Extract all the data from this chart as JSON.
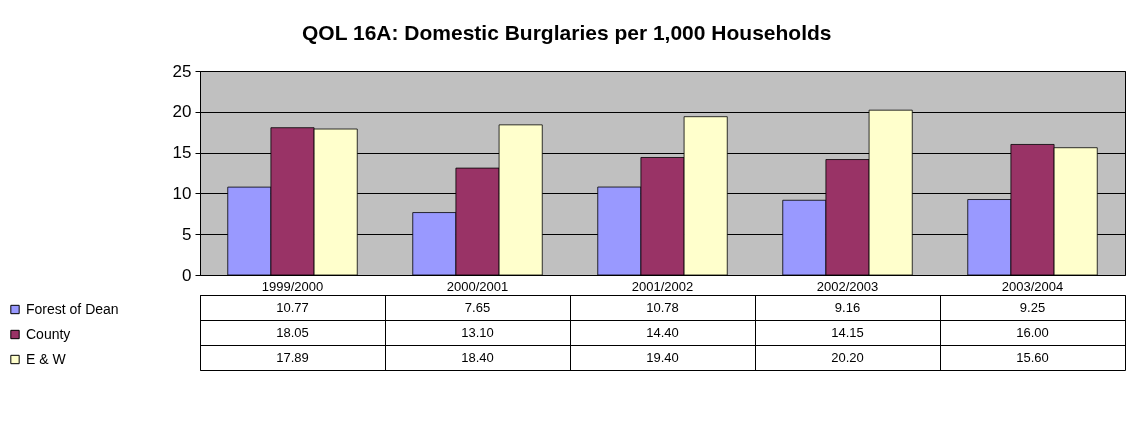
{
  "chart_data": {
    "type": "bar",
    "title": "QOL 16A: Domestic Burglaries per 1,000 Households",
    "categories": [
      "1999/2000",
      "2000/2001",
      "2001/2002",
      "2002/2003",
      "2003/2004"
    ],
    "series": [
      {
        "name": "Forest of Dean",
        "color": "#9999ff",
        "values": [
          10.77,
          7.65,
          10.78,
          9.16,
          9.25
        ],
        "value_labels": [
          "10.77",
          "7.65",
          "10.78",
          "9.16",
          "9.25"
        ]
      },
      {
        "name": "County",
        "color": "#993366",
        "values": [
          18.05,
          13.1,
          14.4,
          14.15,
          16.0
        ],
        "value_labels": [
          "18.05",
          "13.10",
          "14.40",
          "14.15",
          "16.00"
        ]
      },
      {
        "name": "E & W",
        "color": "#ffffcc",
        "values": [
          17.89,
          18.4,
          19.4,
          20.2,
          15.6
        ],
        "value_labels": [
          "17.89",
          "18.40",
          "19.40",
          "20.20",
          "15.60"
        ]
      }
    ],
    "ylim": [
      0,
      25
    ],
    "yticks": [
      0,
      5,
      10,
      15,
      20,
      25
    ],
    "grid": "y",
    "legend": "bottom left"
  }
}
